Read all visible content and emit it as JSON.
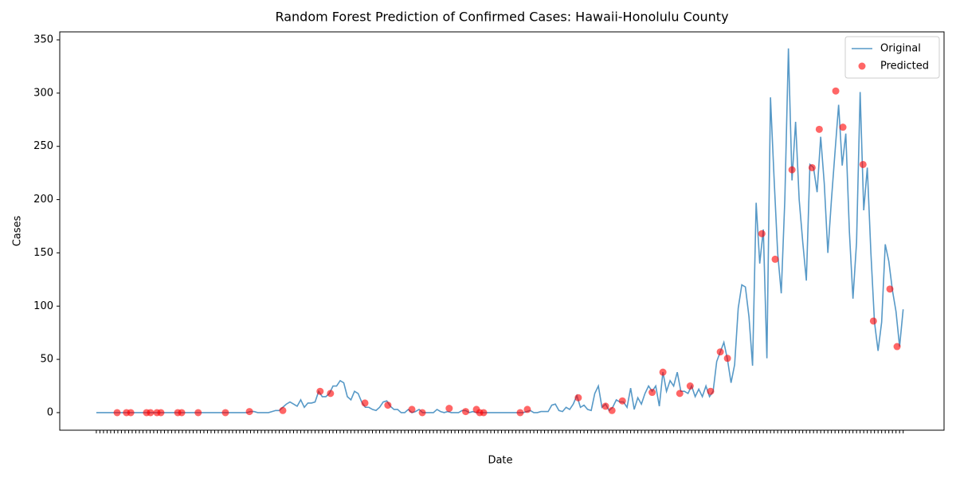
{
  "chart_data": {
    "type": "line",
    "title": "Random Forest Prediction of Confirmed Cases: Hawaii-Honolulu County",
    "xlabel": "Date",
    "ylabel": "Cases",
    "x": [
      0,
      1,
      2,
      3,
      4,
      5,
      6,
      7,
      8,
      9,
      10,
      11,
      12,
      13,
      14,
      15,
      16,
      17,
      18,
      19,
      20,
      21,
      22,
      23,
      24,
      25,
      26,
      27,
      28,
      29,
      30,
      31,
      32,
      33,
      34,
      35,
      36,
      37,
      38,
      39,
      40,
      41,
      42,
      43,
      44,
      45,
      46,
      47,
      48,
      49,
      50,
      51,
      52,
      53,
      54,
      55,
      56,
      57,
      58,
      59,
      60,
      61,
      62,
      63,
      64,
      65,
      66,
      67,
      68,
      69,
      70,
      71,
      72,
      73,
      74,
      75,
      76,
      77,
      78,
      79,
      80,
      81,
      82,
      83,
      84,
      85,
      86,
      87,
      88,
      89,
      90,
      91,
      92,
      93,
      94,
      95,
      96,
      97,
      98,
      99,
      100,
      101,
      102,
      103,
      104,
      105,
      106,
      107,
      108,
      109,
      110,
      111,
      112,
      113,
      114,
      115,
      116,
      117,
      118,
      119,
      120,
      121,
      122,
      123,
      124,
      125,
      126,
      127,
      128,
      129,
      130,
      131,
      132,
      133,
      134,
      135,
      136,
      137,
      138,
      139,
      140,
      141,
      142,
      143,
      144,
      145,
      146,
      147,
      148,
      149,
      150,
      151,
      152,
      153,
      154,
      155,
      156,
      157,
      158,
      159,
      160,
      161,
      162,
      163,
      164,
      165,
      166,
      167,
      168,
      169,
      170,
      171,
      172,
      173,
      174,
      175,
      176,
      177,
      178,
      179,
      180,
      181,
      182,
      183,
      184,
      185,
      186,
      187,
      188,
      189,
      190,
      191,
      192,
      193,
      194,
      195,
      196,
      197,
      198,
      199,
      200,
      201,
      202,
      203,
      204,
      205,
      206,
      207,
      208,
      209,
      210,
      211,
      212,
      213,
      214,
      215,
      216,
      217,
      218,
      219,
      220,
      221,
      222,
      223,
      224,
      225
    ],
    "xlim": [
      -10.2,
      236.4
    ],
    "ylim": [
      -16.5,
      357.5
    ],
    "yticks": [
      0,
      50,
      100,
      150,
      200,
      250,
      300,
      350
    ],
    "legend": "upper right",
    "series": [
      {
        "name": "Original",
        "color": "#1f77b4",
        "kind": "line",
        "values": [
          0,
          0,
          0,
          0,
          0,
          0,
          0,
          0,
          0,
          0,
          0,
          0,
          0,
          0,
          0,
          0,
          0,
          0,
          0,
          0,
          0,
          0,
          0,
          0,
          0,
          0,
          0,
          0,
          0,
          0,
          0,
          0,
          0,
          0,
          0,
          0,
          0,
          0,
          0,
          0,
          0,
          0,
          0,
          1,
          1,
          0,
          0,
          0,
          0,
          1,
          2,
          2,
          5,
          8,
          10,
          8,
          6,
          12,
          5,
          9,
          9,
          10,
          20,
          15,
          15,
          18,
          25,
          25,
          30,
          28,
          15,
          12,
          20,
          18,
          10,
          5,
          5,
          3,
          2,
          5,
          10,
          11,
          6,
          3,
          3,
          0,
          0,
          3,
          0,
          1,
          3,
          0,
          0,
          0,
          0,
          3,
          1,
          0,
          1,
          0,
          0,
          0,
          2,
          2,
          0,
          1,
          0,
          0,
          0,
          0,
          0,
          0,
          0,
          0,
          0,
          0,
          0,
          0,
          0,
          0,
          1,
          2,
          0,
          0,
          1,
          1,
          1,
          7,
          8,
          2,
          1,
          5,
          3,
          8,
          16,
          5,
          7,
          3,
          2,
          18,
          25,
          5,
          8,
          2,
          5,
          12,
          10,
          10,
          5,
          23,
          3,
          14,
          8,
          18,
          25,
          20,
          25,
          6,
          38,
          20,
          30,
          25,
          38,
          20,
          20,
          18,
          25,
          15,
          22,
          15,
          25,
          15,
          20,
          48,
          57,
          66,
          50,
          28,
          45,
          98,
          120,
          118,
          90,
          44,
          197,
          140,
          172,
          51,
          296,
          220,
          150,
          112,
          200,
          342,
          218,
          273,
          200,
          160,
          124,
          233,
          230,
          207,
          259,
          215,
          150,
          200,
          245,
          289,
          232,
          262,
          170,
          107,
          160,
          301,
          190,
          230,
          150,
          85,
          58,
          85,
          158,
          142,
          115,
          95,
          62,
          97
        ]
      },
      {
        "name": "Predicted",
        "color": "#ff0000",
        "kind": "scatter",
        "x": [
          5.8,
          8.4,
          9.6,
          14,
          15.1,
          16.9,
          18,
          22.7,
          23.8,
          28.4,
          36,
          42.7,
          52,
          62.4,
          65.3,
          74.9,
          81.3,
          88,
          90.9,
          98.4,
          103,
          106,
          106.9,
          108,
          118.2,
          120.2,
          134.4,
          142,
          143.8,
          146.7,
          155,
          158,
          162.7,
          165.6,
          171.3,
          174,
          176,
          185.6,
          189.3,
          194,
          199.6,
          201.6,
          206.2,
          208.2,
          213.8,
          216.7,
          221.3,
          223.3
        ],
        "values": [
          0,
          0,
          0,
          0,
          0,
          0,
          0,
          0,
          0,
          0,
          0,
          1,
          2,
          20,
          18,
          9,
          7,
          3,
          0,
          4,
          1,
          3,
          0,
          0,
          0,
          3,
          14,
          6,
          2,
          11,
          19,
          38,
          18,
          25,
          20,
          57,
          51,
          168,
          144,
          228,
          230,
          266,
          302,
          268,
          233,
          86,
          116,
          62
        ]
      }
    ]
  }
}
